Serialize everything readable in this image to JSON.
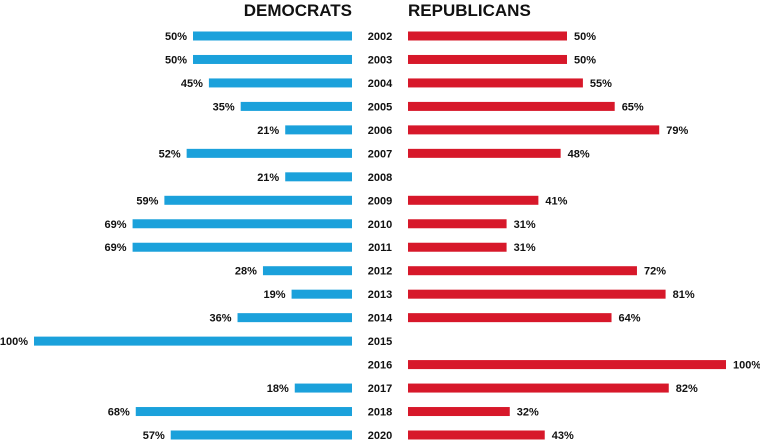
{
  "chart_data": {
    "type": "bar",
    "layout": "diverging-horizontal",
    "categories": [
      "2002",
      "2003",
      "2004",
      "2005",
      "2006",
      "2007",
      "2008",
      "2009",
      "2010",
      "2011",
      "2012",
      "2013",
      "2014",
      "2015",
      "2016",
      "2017",
      "2018",
      "2020"
    ],
    "series": [
      {
        "name": "DEMOCRATS",
        "color": "#1ba1db",
        "values": [
          50,
          50,
          45,
          35,
          21,
          52,
          21,
          59,
          69,
          69,
          28,
          19,
          36,
          100,
          null,
          18,
          68,
          57
        ],
        "labels": [
          "50%",
          "50%",
          "45%",
          "35%",
          "21%",
          "52%",
          "21%",
          "59%",
          "69%",
          "69%",
          "28%",
          "19%",
          "36%",
          "100%",
          "",
          "18%",
          "68%",
          "57%"
        ]
      },
      {
        "name": "REPUBLICANS",
        "color": "#d7182a",
        "values": [
          50,
          50,
          55,
          65,
          79,
          48,
          null,
          41,
          31,
          31,
          72,
          81,
          64,
          null,
          100,
          82,
          32,
          43
        ],
        "labels": [
          "50%",
          "50%",
          "55%",
          "65%",
          "79%",
          "48%",
          "",
          "41%",
          "31%",
          "31%",
          "72%",
          "81%",
          "64%",
          "",
          "100%",
          "82%",
          "32%",
          "43%"
        ]
      }
    ],
    "xlim": [
      0,
      100
    ],
    "grid": false,
    "legend": "none"
  }
}
